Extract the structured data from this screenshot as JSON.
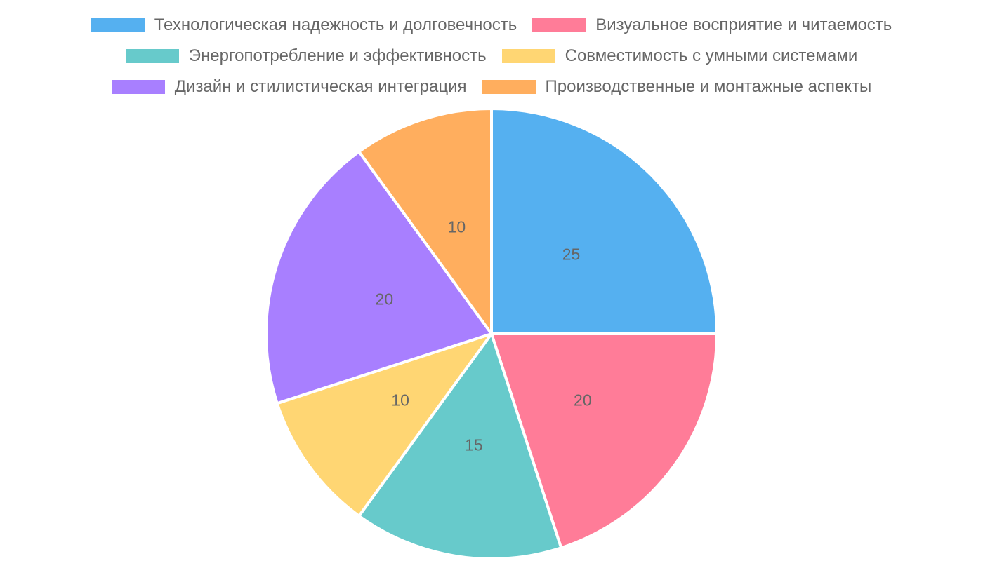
{
  "chart_data": {
    "type": "pie",
    "title": "",
    "legend_position": "top",
    "categories": [
      "Технологическая надежность и долговечность",
      "Визуальное восприятие и читаемость",
      "Энергопотребление и эффективность",
      "Совместимость с умными системами",
      "Дизайн и стилистическая интеграция",
      "Производственные и монтажные аспекты"
    ],
    "values": [
      25,
      20,
      15,
      10,
      20,
      10
    ],
    "value_labels": [
      "25",
      "20",
      "15",
      "10",
      "20",
      "10"
    ],
    "colors": [
      "#55b0f0",
      "#ff7c98",
      "#67cacb",
      "#ffd673",
      "#a87fff",
      "#ffae5e"
    ]
  }
}
